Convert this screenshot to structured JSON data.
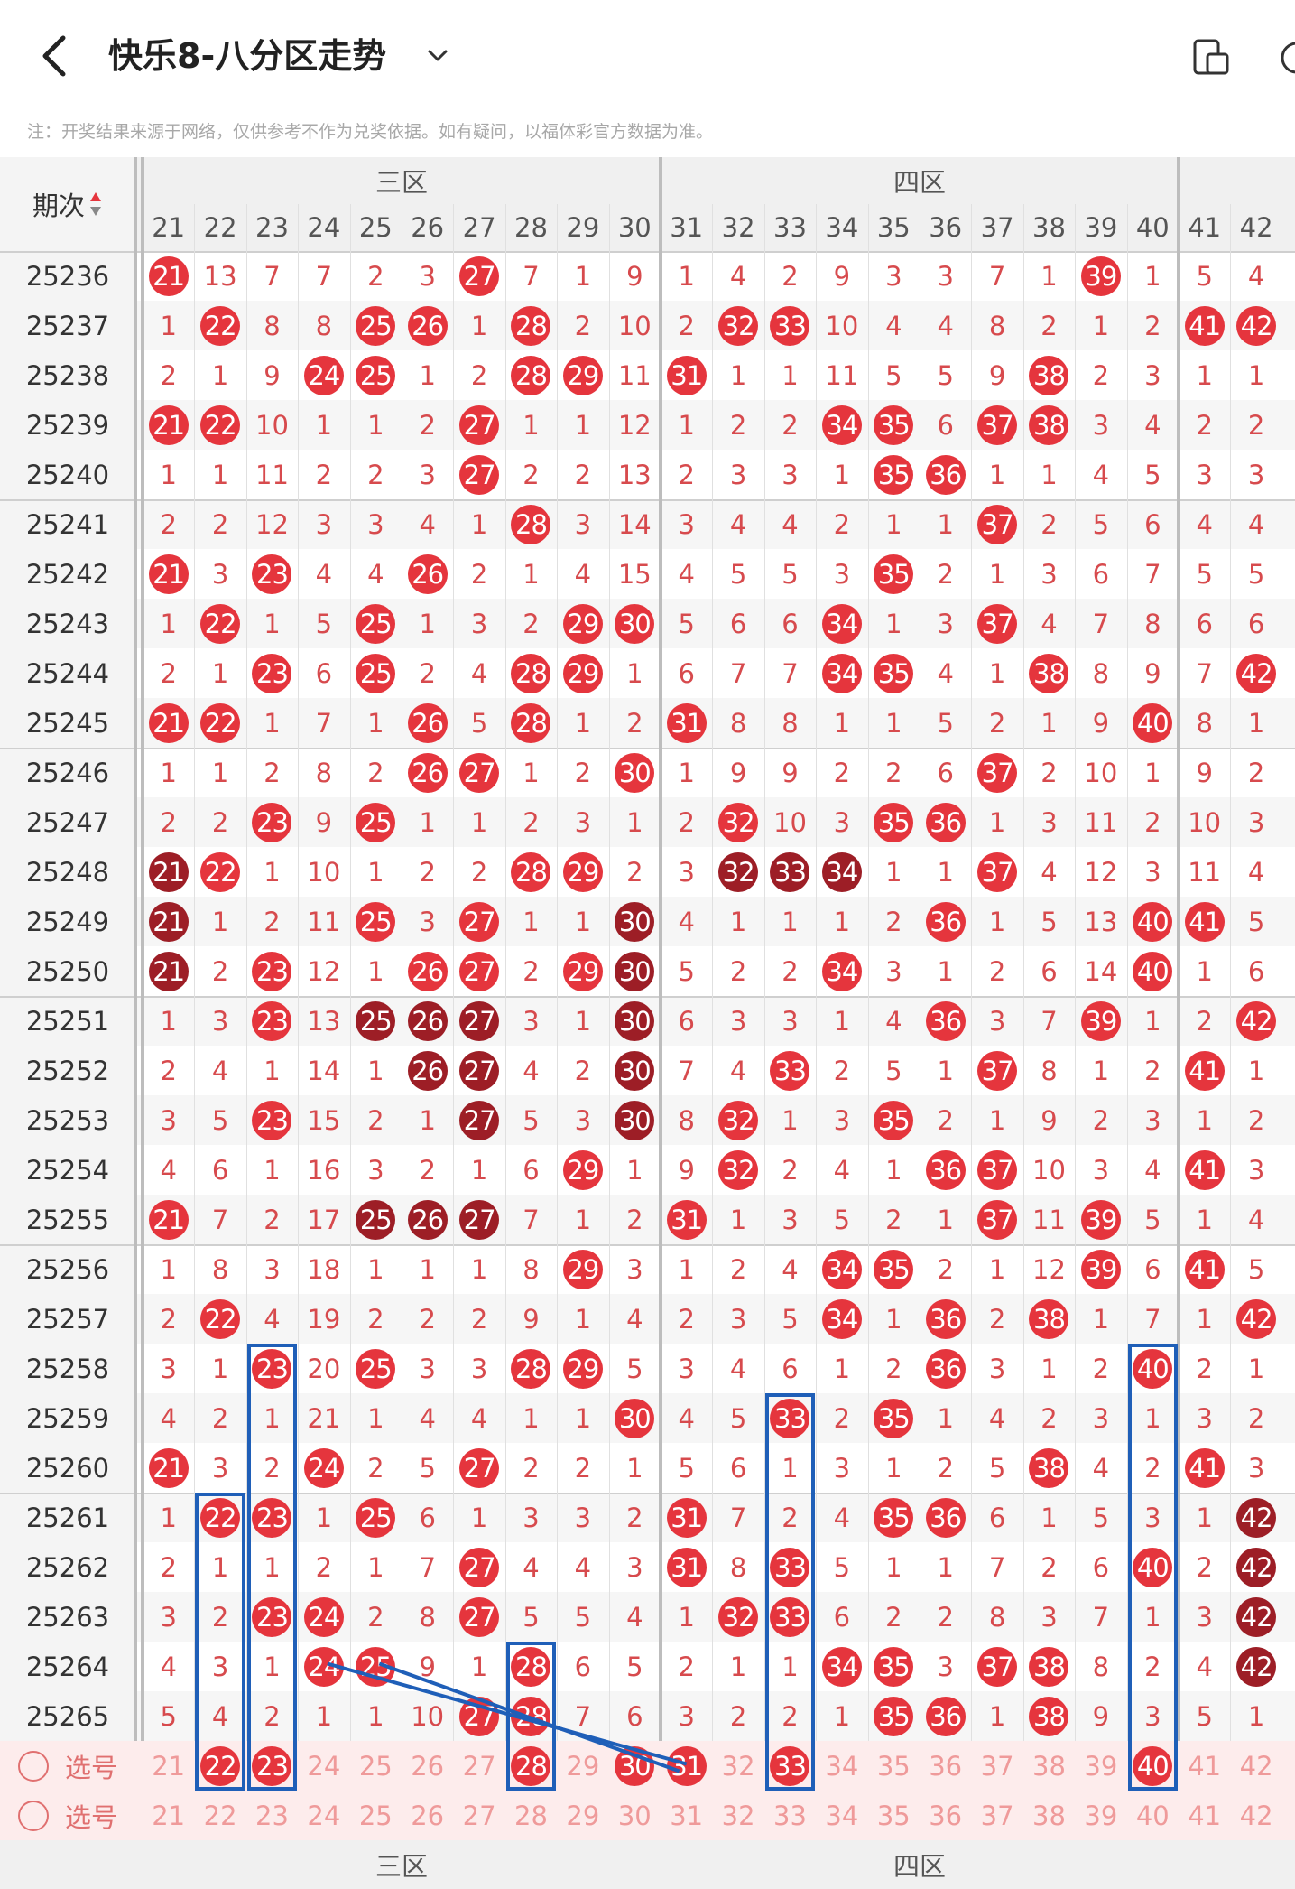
{
  "header": {
    "title": "快乐8-八分区走势",
    "notice": "注：开奖结果来源于网络，仅供参考不作为兑奖依据。如有疑问，以福体彩官方数据为准。"
  },
  "table": {
    "period_header": "期次",
    "sort_icon": "sort-icon",
    "zones": [
      {
        "label": "三区",
        "first": 21,
        "last": 30
      },
      {
        "label": "四区",
        "first": 31,
        "last": 40
      }
    ],
    "columns": [
      21,
      22,
      23,
      24,
      25,
      26,
      27,
      28,
      29,
      30,
      31,
      32,
      33,
      34,
      35,
      36,
      37,
      38,
      39,
      40,
      41,
      42
    ],
    "rows": [
      {
        "p": "25236",
        "v": [
          "21",
          "13",
          "7",
          "7",
          "2",
          "3",
          "27",
          "7",
          "1",
          "9",
          "1",
          "4",
          "2",
          "9",
          "3",
          "3",
          "7",
          "1",
          "39",
          "1",
          "5",
          "4"
        ]
      },
      {
        "p": "25237",
        "v": [
          "1",
          "22",
          "8",
          "8",
          "25",
          "26",
          "1",
          "28",
          "2",
          "10",
          "2",
          "32",
          "33",
          "10",
          "4",
          "4",
          "8",
          "2",
          "1",
          "2",
          "41",
          "42"
        ]
      },
      {
        "p": "25238",
        "v": [
          "2",
          "1",
          "9",
          "24",
          "25",
          "1",
          "2",
          "28",
          "29",
          "11",
          "31",
          "1",
          "1",
          "11",
          "5",
          "5",
          "9",
          "38",
          "2",
          "3",
          "1",
          "1"
        ]
      },
      {
        "p": "25239",
        "v": [
          "21",
          "22",
          "10",
          "1",
          "1",
          "2",
          "27",
          "1",
          "1",
          "12",
          "1",
          "2",
          "2",
          "34",
          "35",
          "6",
          "37",
          "38",
          "3",
          "4",
          "2",
          "2"
        ]
      },
      {
        "p": "25240",
        "v": [
          "1",
          "1",
          "11",
          "2",
          "2",
          "3",
          "27",
          "2",
          "2",
          "13",
          "2",
          "3",
          "3",
          "1",
          "35",
          "36",
          "1",
          "1",
          "4",
          "5",
          "3",
          "3"
        ]
      },
      {
        "p": "25241",
        "v": [
          "2",
          "2",
          "12",
          "3",
          "3",
          "4",
          "1",
          "28",
          "3",
          "14",
          "3",
          "4",
          "4",
          "2",
          "1",
          "1",
          "37",
          "2",
          "5",
          "6",
          "4",
          "4"
        ]
      },
      {
        "p": "25242",
        "v": [
          "21",
          "3",
          "23",
          "4",
          "4",
          "26",
          "2",
          "1",
          "4",
          "15",
          "4",
          "5",
          "5",
          "3",
          "35",
          "2",
          "1",
          "3",
          "6",
          "7",
          "5",
          "5"
        ]
      },
      {
        "p": "25243",
        "v": [
          "1",
          "22",
          "1",
          "5",
          "25",
          "1",
          "3",
          "2",
          "29",
          "30",
          "5",
          "6",
          "6",
          "34",
          "1",
          "3",
          "37",
          "4",
          "7",
          "8",
          "6",
          "6"
        ]
      },
      {
        "p": "25244",
        "v": [
          "2",
          "1",
          "23",
          "6",
          "25",
          "2",
          "4",
          "28",
          "29",
          "1",
          "6",
          "7",
          "7",
          "34",
          "35",
          "4",
          "1",
          "38",
          "8",
          "9",
          "7",
          "42"
        ]
      },
      {
        "p": "25245",
        "v": [
          "21",
          "22",
          "1",
          "7",
          "1",
          "26",
          "5",
          "28",
          "1",
          "2",
          "31",
          "8",
          "8",
          "1",
          "1",
          "5",
          "2",
          "1",
          "9",
          "40",
          "8",
          "1"
        ]
      },
      {
        "p": "25246",
        "v": [
          "1",
          "1",
          "2",
          "8",
          "2",
          "26",
          "27",
          "1",
          "2",
          "30",
          "1",
          "9",
          "9",
          "2",
          "2",
          "6",
          "37",
          "2",
          "10",
          "1",
          "9",
          "2"
        ]
      },
      {
        "p": "25247",
        "v": [
          "2",
          "2",
          "23",
          "9",
          "25",
          "1",
          "1",
          "2",
          "3",
          "1",
          "2",
          "32",
          "10",
          "3",
          "35",
          "36",
          "1",
          "3",
          "11",
          "2",
          "10",
          "3"
        ]
      },
      {
        "p": "25248",
        "v": [
          "21",
          "22",
          "1",
          "10",
          "1",
          "2",
          "2",
          "28",
          "29",
          "2",
          "3",
          "32",
          "33",
          "34",
          "1",
          "1",
          "37",
          "4",
          "12",
          "3",
          "11",
          "4"
        ]
      },
      {
        "p": "25249",
        "v": [
          "21",
          "1",
          "2",
          "11",
          "25",
          "3",
          "27",
          "1",
          "1",
          "30",
          "4",
          "1",
          "1",
          "1",
          "2",
          "36",
          "1",
          "5",
          "13",
          "40",
          "41",
          "5"
        ]
      },
      {
        "p": "25250",
        "v": [
          "21",
          "2",
          "23",
          "12",
          "1",
          "26",
          "27",
          "2",
          "29",
          "30",
          "5",
          "2",
          "2",
          "34",
          "3",
          "1",
          "2",
          "6",
          "14",
          "40",
          "1",
          "6"
        ]
      },
      {
        "p": "25251",
        "v": [
          "1",
          "3",
          "23",
          "13",
          "25",
          "26",
          "27",
          "3",
          "1",
          "30",
          "6",
          "3",
          "3",
          "1",
          "4",
          "36",
          "3",
          "7",
          "39",
          "1",
          "2",
          "42"
        ]
      },
      {
        "p": "25252",
        "v": [
          "2",
          "4",
          "1",
          "14",
          "1",
          "26",
          "27",
          "4",
          "2",
          "30",
          "7",
          "4",
          "33",
          "2",
          "5",
          "1",
          "37",
          "8",
          "1",
          "2",
          "41",
          "1"
        ]
      },
      {
        "p": "25253",
        "v": [
          "3",
          "5",
          "23",
          "15",
          "2",
          "1",
          "27",
          "5",
          "3",
          "30",
          "8",
          "32",
          "1",
          "3",
          "35",
          "2",
          "1",
          "9",
          "2",
          "3",
          "1",
          "2"
        ]
      },
      {
        "p": "25254",
        "v": [
          "4",
          "6",
          "1",
          "16",
          "3",
          "2",
          "1",
          "6",
          "29",
          "1",
          "9",
          "32",
          "2",
          "4",
          "1",
          "36",
          "37",
          "10",
          "3",
          "4",
          "41",
          "3"
        ]
      },
      {
        "p": "25255",
        "v": [
          "21",
          "7",
          "2",
          "17",
          "25",
          "26",
          "27",
          "7",
          "1",
          "2",
          "31",
          "1",
          "3",
          "5",
          "2",
          "1",
          "37",
          "11",
          "39",
          "5",
          "1",
          "4"
        ]
      },
      {
        "p": "25256",
        "v": [
          "1",
          "8",
          "3",
          "18",
          "1",
          "1",
          "1",
          "8",
          "29",
          "3",
          "1",
          "2",
          "4",
          "34",
          "35",
          "2",
          "1",
          "12",
          "39",
          "6",
          "41",
          "5"
        ]
      },
      {
        "p": "25257",
        "v": [
          "2",
          "22",
          "4",
          "19",
          "2",
          "2",
          "2",
          "9",
          "1",
          "4",
          "2",
          "3",
          "5",
          "34",
          "1",
          "36",
          "2",
          "38",
          "1",
          "7",
          "1",
          "42"
        ]
      },
      {
        "p": "25258",
        "v": [
          "3",
          "1",
          "23",
          "20",
          "25",
          "3",
          "3",
          "28",
          "29",
          "5",
          "3",
          "4",
          "6",
          "1",
          "2",
          "36",
          "3",
          "1",
          "2",
          "40",
          "2",
          "1"
        ]
      },
      {
        "p": "25259",
        "v": [
          "4",
          "2",
          "1",
          "21",
          "1",
          "4",
          "4",
          "1",
          "1",
          "30",
          "4",
          "5",
          "33",
          "2",
          "35",
          "1",
          "4",
          "2",
          "3",
          "1",
          "3",
          "2"
        ]
      },
      {
        "p": "25260",
        "v": [
          "21",
          "3",
          "2",
          "24",
          "2",
          "5",
          "27",
          "2",
          "2",
          "1",
          "5",
          "6",
          "1",
          "3",
          "1",
          "2",
          "5",
          "38",
          "4",
          "2",
          "41",
          "3"
        ]
      },
      {
        "p": "25261",
        "v": [
          "1",
          "22",
          "23",
          "1",
          "25",
          "6",
          "1",
          "3",
          "3",
          "2",
          "31",
          "7",
          "2",
          "4",
          "35",
          "36",
          "6",
          "1",
          "5",
          "3",
          "1",
          "42"
        ]
      },
      {
        "p": "25262",
        "v": [
          "2",
          "1",
          "1",
          "2",
          "1",
          "7",
          "27",
          "4",
          "4",
          "3",
          "31",
          "8",
          "33",
          "5",
          "1",
          "1",
          "7",
          "2",
          "6",
          "40",
          "2",
          "42"
        ]
      },
      {
        "p": "25263",
        "v": [
          "3",
          "2",
          "23",
          "24",
          "2",
          "8",
          "27",
          "5",
          "5",
          "4",
          "1",
          "32",
          "33",
          "6",
          "2",
          "2",
          "8",
          "3",
          "7",
          "1",
          "3",
          "42"
        ]
      },
      {
        "p": "25264",
        "v": [
          "4",
          "3",
          "1",
          "24",
          "25",
          "9",
          "1",
          "28",
          "6",
          "5",
          "2",
          "1",
          "1",
          "34",
          "35",
          "3",
          "37",
          "38",
          "8",
          "2",
          "4",
          "42"
        ]
      },
      {
        "p": "25265",
        "v": [
          "5",
          "4",
          "2",
          "1",
          "1",
          "10",
          "27",
          "28",
          "7",
          "6",
          "3",
          "2",
          "2",
          "1",
          "35",
          "36",
          "1",
          "38",
          "9",
          "3",
          "5",
          "1"
        ]
      }
    ],
    "select_label": "选号",
    "select_balls": [
      "22",
      "23",
      "28",
      "30",
      "31",
      "33",
      "40"
    ],
    "footer_zones": [
      "三区",
      "四区"
    ]
  },
  "colors": {
    "ball_red": "#e5353d",
    "ball_dark": "#9d1e26",
    "miss_text": "#d74a4d",
    "line_blue": "#1f5fb8"
  },
  "dark_balls": [
    "25248:21",
    "25249:21",
    "25250:21",
    "25248:32",
    "25248:33",
    "25248:34",
    "25249:30",
    "25250:30",
    "25251:30",
    "25252:30",
    "25253:30",
    "25251:25",
    "25251:26",
    "25251:27",
    "25252:26",
    "25252:27",
    "25253:27",
    "25255:25",
    "25255:26",
    "25255:27",
    "25261:42",
    "25262:42",
    "25263:42",
    "25264:42"
  ]
}
